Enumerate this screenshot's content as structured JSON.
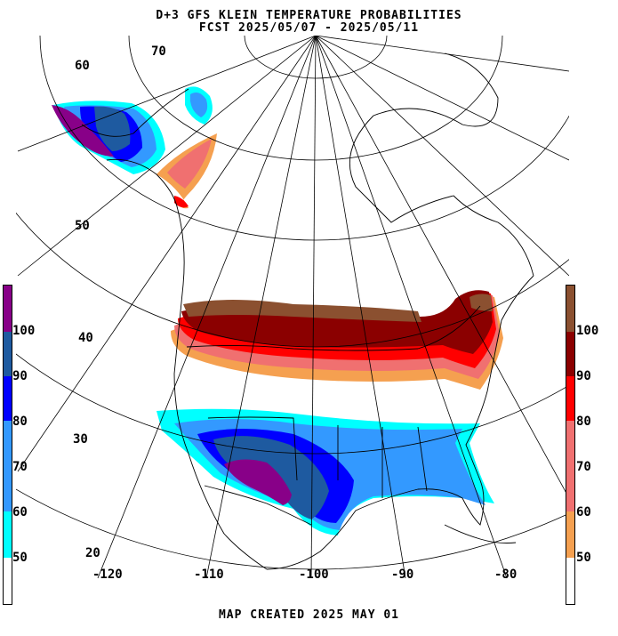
{
  "title": "D+3 GFS KLEIN TEMPERATURE PROBABILITIES",
  "subtitle": "FCST 2025/05/07 - 2025/05/11",
  "footer": "MAP CREATED 2025 MAY 01",
  "lat_labels": [
    "70",
    "60",
    "50",
    "40",
    "30",
    "20"
  ],
  "lon_labels": [
    "-120",
    "-110",
    "-100",
    "-90",
    "-80"
  ],
  "below_scale": {
    "labels": [
      "100",
      "90",
      "80",
      "70",
      "60",
      "50"
    ],
    "colors": [
      "#ffffff",
      "#00ffff",
      "#3399ff",
      "#0000ff",
      "#1e5aa0",
      "#880088"
    ]
  },
  "above_scale": {
    "labels": [
      "100",
      "90",
      "80",
      "70",
      "60",
      "50"
    ],
    "colors": [
      "#ffffff",
      "#f5a050",
      "#f07070",
      "#ff0000",
      "#8b0000",
      "#8b5030"
    ]
  }
}
